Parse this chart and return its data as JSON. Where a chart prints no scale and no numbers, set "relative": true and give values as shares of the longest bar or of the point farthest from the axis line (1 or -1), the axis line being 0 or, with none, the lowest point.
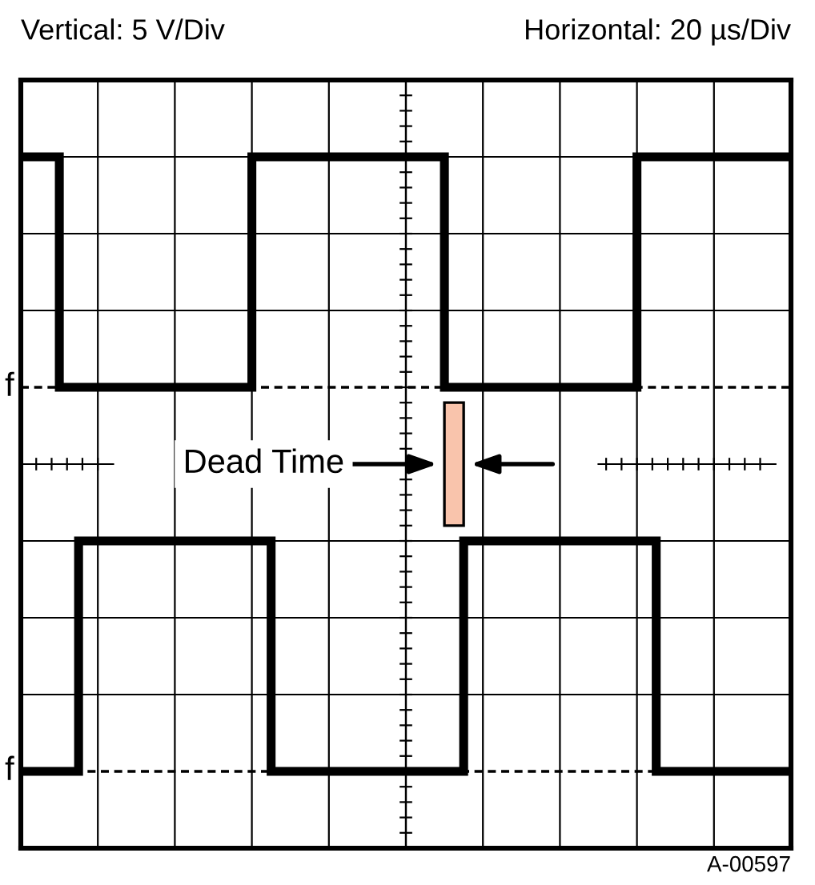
{
  "chart_data": {
    "type": "step",
    "title": "Vertical: 5 V/Div",
    "subtitle": "Horizontal: 20 µs/Div",
    "relative": true,
    "categories": [
      null,
      null,
      null,
      null,
      null,
      null,
      null,
      null,
      null,
      null,
      null,
      null,
      null,
      null,
      null,
      null,
      null,
      null,
      null,
      null,
      null,
      null,
      null,
      null,
      null,
      null,
      null,
      null,
      null,
      null,
      null,
      null,
      null,
      null,
      null,
      null,
      null,
      null,
      null,
      null,
      null
    ],
    "tick_labels": false,
    "grid": true,
    "line_style": "solid",
    "marker": "none",
    "series": [
      {
        "color": "#000000",
        "values": [
          1,
          1,
          0.625,
          0.625,
          0.625,
          0.625,
          0.625,
          0.625,
          0.625,
          0.625,
          0.625,
          0.625,
          1,
          1,
          1,
          1,
          1,
          1,
          1,
          1,
          1,
          1,
          0.625,
          0.625,
          0.625,
          0.625,
          0.625,
          0.625,
          0.625,
          0.625,
          0.625,
          0.625,
          1,
          1,
          1,
          1,
          1,
          1,
          1,
          1,
          1
        ]
      },
      {
        "color": "#000000",
        "values": [
          0,
          0,
          0,
          0.375,
          0.375,
          0.375,
          0.375,
          0.375,
          0.375,
          0.375,
          0.375,
          0.375,
          0.375,
          0,
          0,
          0,
          0,
          0,
          0,
          0,
          0,
          0,
          0,
          0.375,
          0.375,
          0.375,
          0.375,
          0.375,
          0.375,
          0.375,
          0.375,
          0.375,
          0.375,
          0,
          0,
          0,
          0,
          0,
          0,
          0,
          0
        ]
      }
    ],
    "ref_lines": [
      {
        "axis": "y",
        "value": 0.625,
        "label": "f",
        "line_style": "dashed",
        "color": "#000000"
      },
      {
        "axis": "y",
        "value": 0,
        "label": "f",
        "line_style": "dashed",
        "color": "#000000"
      }
    ],
    "annotations": [
      "Dead Time",
      "A-00597"
    ]
  }
}
